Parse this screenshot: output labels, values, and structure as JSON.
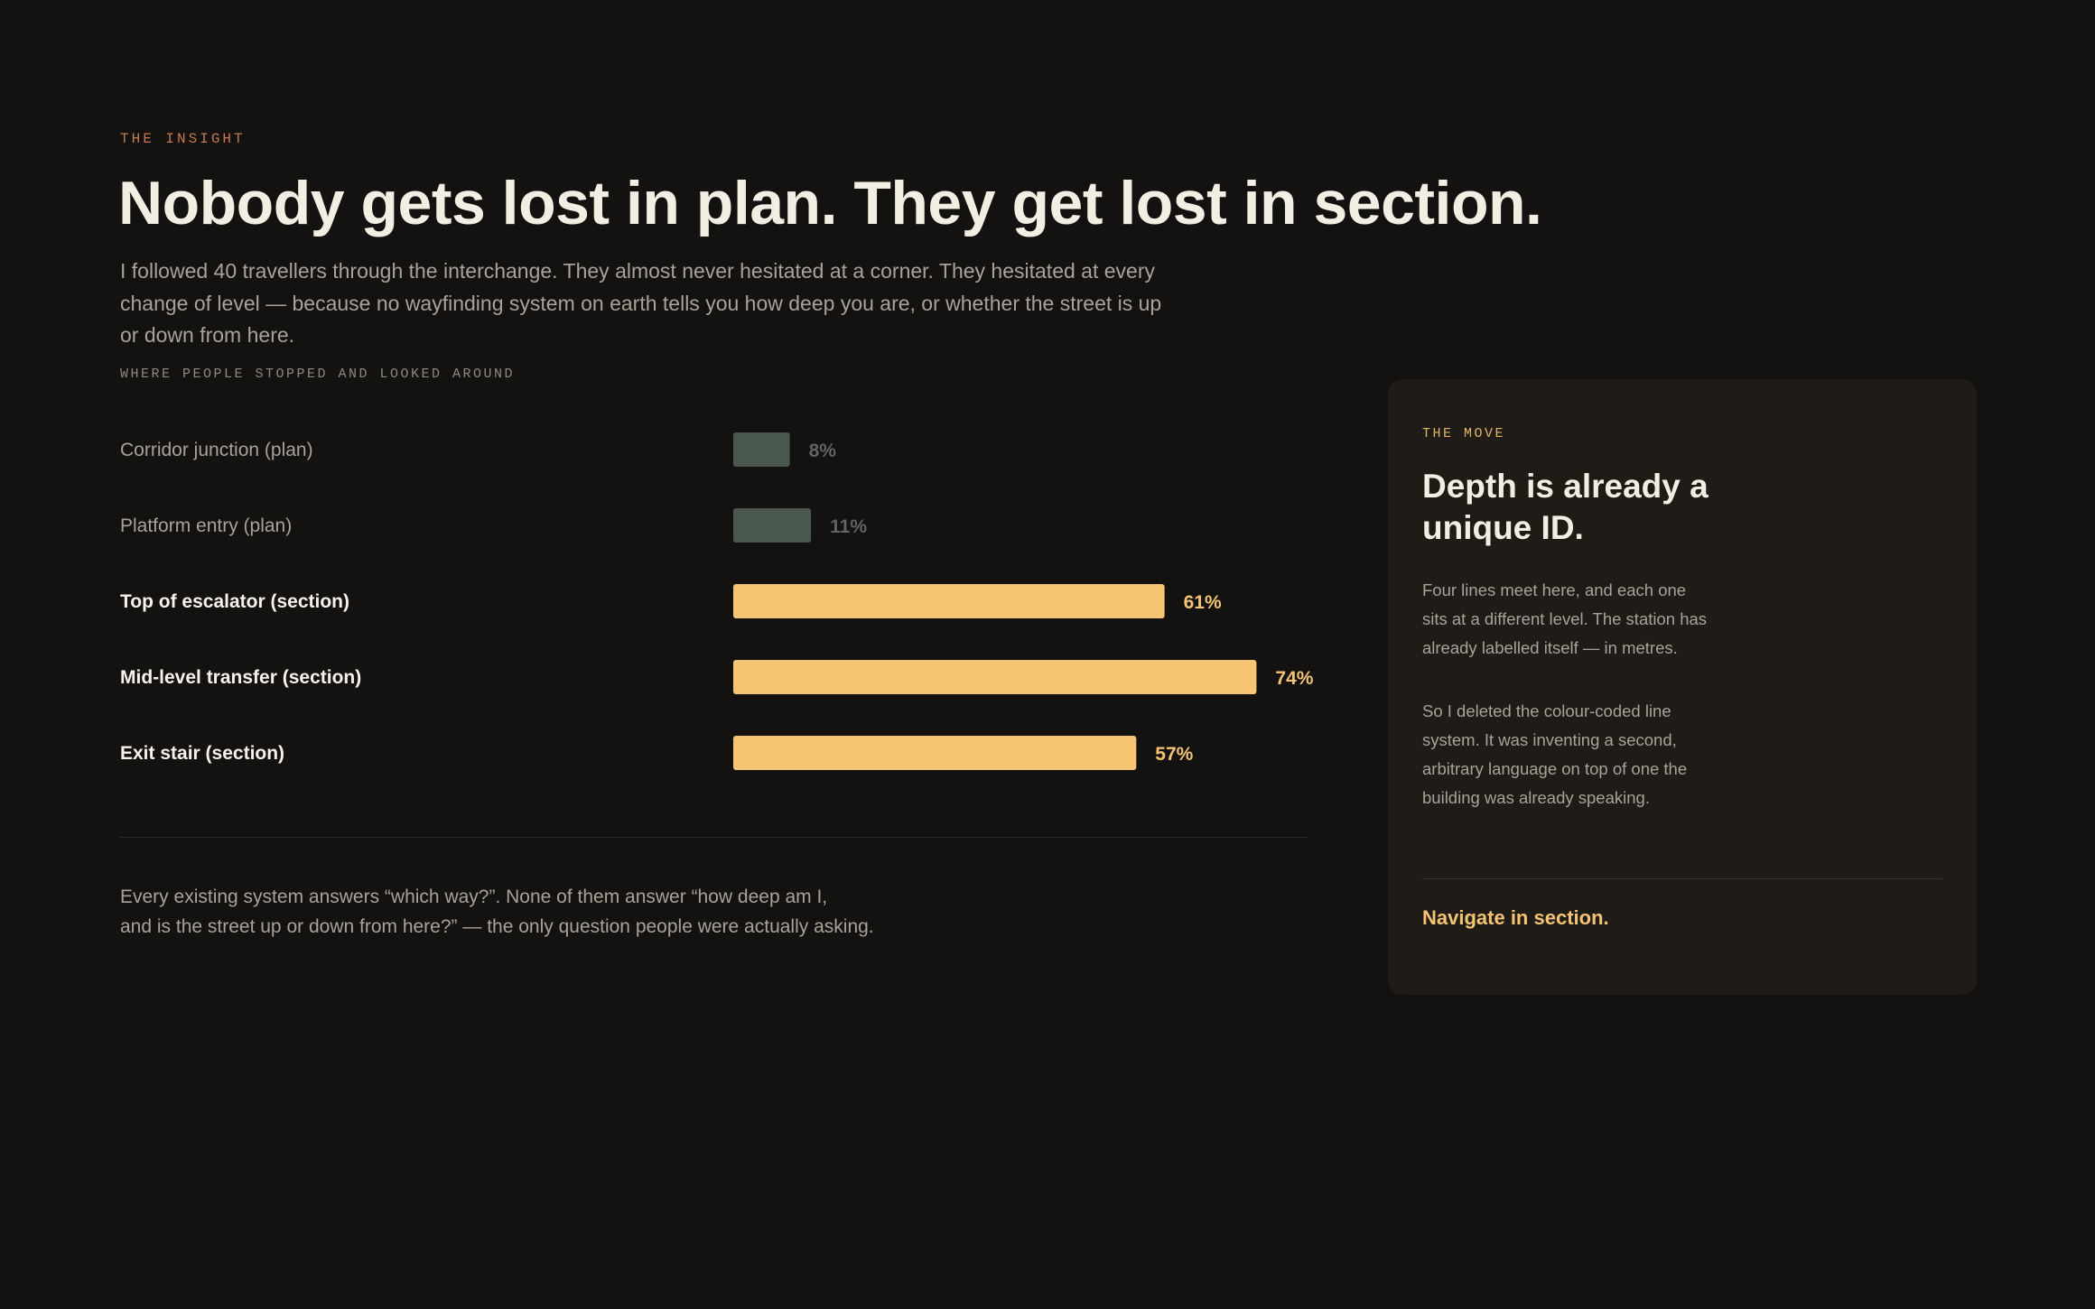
{
  "insight": {
    "eyebrow": "THE INSIGHT",
    "headline": "Nobody gets lost in plan. They get lost in section.",
    "lede": "I followed 40 travellers through the interchange. They almost never hesitated at a corner. They hesitated at every change of level — because no wayfinding system on earth tells you how deep you are, or whether the street is up or down from here."
  },
  "chart_data": {
    "type": "bar",
    "orientation": "horizontal",
    "title": "WHERE PEOPLE STOPPED AND LOOKED AROUND",
    "categories": [
      "Corridor junction (plan)",
      "Platform entry (plan)",
      "Top of escalator (section)",
      "Mid-level transfer (section)",
      "Exit stair (section)"
    ],
    "values": [
      8,
      11,
      61,
      74,
      57
    ],
    "value_labels": [
      "8%",
      "11%",
      "61%",
      "74%",
      "57%"
    ],
    "highlighted": [
      false,
      false,
      true,
      true,
      true
    ],
    "unit": "%",
    "xlim": [
      0,
      100
    ],
    "grid": false,
    "legend": "none",
    "colors": {
      "muted_bar": "#4a574f",
      "muted_label": "#a8a398",
      "muted_value": "#5f6560",
      "highlight_bar": "#f7c674",
      "highlight_label": "#f7f3ea",
      "highlight_value": "#f4c374"
    }
  },
  "footnote": {
    "line1": "Every existing system answers “which way?”. None of them answer “how deep am I,",
    "line2": "and is the street up or down from here?” — the only question people were actually asking."
  },
  "move_card": {
    "eyebrow": "THE MOVE",
    "title": "Depth is already a unique ID.",
    "paragraph1": "Four lines meet here, and each one sits at a different level. The station has already labelled itself — in metres.",
    "paragraph2": "So I deleted the colour-coded line system. It was inventing a second, arbitrary language on top of one the building was already speaking.",
    "cta": "Navigate in section."
  },
  "colors": {
    "background": "#131210",
    "card_background": "#1f1c17",
    "accent": "#f4c374",
    "eyebrow": "#c27a52"
  }
}
